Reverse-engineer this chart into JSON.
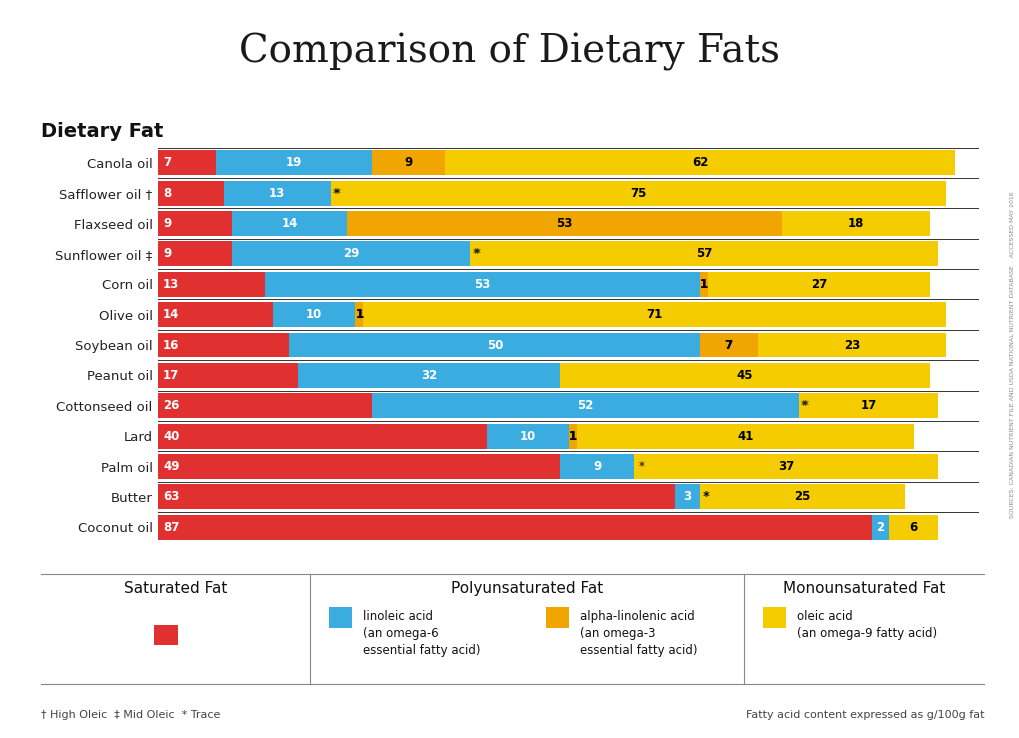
{
  "title": "Comparison of Dietary Fats",
  "subtitle": "Dietary Fat",
  "background_color": "#ffffff",
  "colors": {
    "saturated": "#e03030",
    "linoleic": "#3aace0",
    "alphalinolenic": "#f0a500",
    "oleic": "#f5cc00"
  },
  "oils": [
    "Canola oil",
    "Safflower oil †",
    "Flaxseed oil",
    "Sunflower oil ‡",
    "Corn oil",
    "Olive oil",
    "Soybean oil",
    "Peanut oil",
    "Cottonseed oil",
    "Lard",
    "Palm oil",
    "Butter",
    "Coconut oil"
  ],
  "saturated": [
    7,
    8,
    9,
    9,
    13,
    14,
    16,
    17,
    26,
    40,
    49,
    63,
    87
  ],
  "linoleic": [
    19,
    13,
    14,
    29,
    53,
    10,
    50,
    32,
    52,
    10,
    9,
    3,
    2
  ],
  "alphalinolenic": [
    9,
    0,
    53,
    0,
    1,
    1,
    7,
    0,
    0,
    1,
    0,
    0,
    0
  ],
  "oleic": [
    62,
    75,
    18,
    57,
    27,
    71,
    23,
    45,
    17,
    41,
    37,
    25,
    6
  ],
  "saturated_labels": [
    "7",
    "8",
    "9",
    "9",
    "13",
    "14",
    "16",
    "17",
    "26",
    "40",
    "49",
    "63",
    "87"
  ],
  "linoleic_labels": [
    "19",
    "13",
    "14",
    "29",
    "53",
    "10",
    "50",
    "32",
    "52",
    "10",
    "9",
    "3",
    "2"
  ],
  "alphalinolenic_labels": [
    "9",
    "",
    "53",
    "",
    "1",
    "1",
    "7",
    "",
    "",
    "1",
    "",
    "",
    ""
  ],
  "linoleic_trace": [
    false,
    true,
    false,
    true,
    false,
    false,
    false,
    false,
    true,
    false,
    false,
    true,
    false
  ],
  "alphalinolenic_trace": [
    false,
    false,
    false,
    false,
    false,
    false,
    false,
    false,
    false,
    false,
    false,
    false,
    false
  ],
  "cottonseed_trace": true,
  "palm_trace": true,
  "oleic_labels": [
    "62",
    "75",
    "18",
    "57",
    "27",
    "71",
    "23",
    "45",
    "17",
    "41",
    "37",
    "25",
    "6"
  ],
  "source_text": "SOURCES: CANADIAN NUTRIENT FILE AND USDA NATIONAL NUTRIENT DATABASE",
  "accessed_text": "ACCESSED MAY 2016",
  "footnote_left": "† High Oleic  ‡ Mid Oleic  * Trace",
  "footnote_right": "Fatty acid content expressed as g/100g fat"
}
